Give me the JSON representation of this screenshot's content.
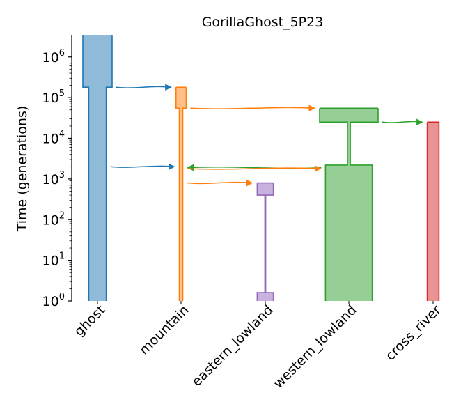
{
  "title": "GorillaGhost_5P23",
  "ylabel": "Time (generations)",
  "yticks": [
    {
      "base": "10",
      "exp": "0"
    },
    {
      "base": "10",
      "exp": "1"
    },
    {
      "base": "10",
      "exp": "2"
    },
    {
      "base": "10",
      "exp": "3"
    },
    {
      "base": "10",
      "exp": "4"
    },
    {
      "base": "10",
      "exp": "5"
    },
    {
      "base": "10",
      "exp": "6"
    }
  ],
  "colors": {
    "ghost": "#1f77b4",
    "mountain": "#ff7f0e",
    "eastern_lowland": "#9467bd",
    "western_lowland": "#2ca02c",
    "cross_river": "#d62728"
  },
  "chart_data": {
    "type": "demes-tubes",
    "y_scale": "log",
    "ylim": [
      1,
      3500000
    ],
    "demes": [
      {
        "name": "ghost",
        "epochs": [
          {
            "start_time": 3500000,
            "end_time": 180000,
            "rel_size": 1.0
          },
          {
            "start_time": 180000,
            "end_time": 1,
            "rel_size": 0.6
          }
        ]
      },
      {
        "name": "mountain",
        "epochs": [
          {
            "start_time": 180000,
            "end_time": 55000,
            "rel_size": 0.35
          },
          {
            "start_time": 55000,
            "end_time": 1,
            "rel_size": 0.12
          }
        ]
      },
      {
        "name": "eastern_lowland",
        "epochs": [
          {
            "start_time": 800,
            "end_time": 400,
            "rel_size": 0.55
          },
          {
            "start_time": 400,
            "end_time": 1.6,
            "rel_size": 0.03
          },
          {
            "start_time": 1.6,
            "end_time": 1,
            "rel_size": 0.55
          }
        ]
      },
      {
        "name": "western_lowland",
        "epochs": [
          {
            "start_time": 55000,
            "end_time": 25000,
            "rel_size": 2.0
          },
          {
            "start_time": 25000,
            "end_time": 2200,
            "rel_size": 0.1
          },
          {
            "start_time": 2200,
            "end_time": 1,
            "rel_size": 1.6
          }
        ]
      },
      {
        "name": "cross_river",
        "epochs": [
          {
            "start_time": 25000,
            "end_time": 1,
            "rel_size": 0.4
          }
        ]
      }
    ],
    "arrows": [
      {
        "source": "ghost",
        "dest": "mountain",
        "time": 180000
      },
      {
        "source": "mountain",
        "dest": "western_lowland",
        "time": 55000
      },
      {
        "source": "western_lowland",
        "dest": "cross_river",
        "time": 25000
      },
      {
        "source": "ghost",
        "dest": "mountain",
        "time": 2000
      },
      {
        "source": "western_lowland",
        "dest": "mountain",
        "time": 1900
      },
      {
        "source": "mountain",
        "dest": "western_lowland",
        "time": 1800
      },
      {
        "source": "mountain",
        "dest": "eastern_lowland",
        "time": 800
      }
    ]
  }
}
